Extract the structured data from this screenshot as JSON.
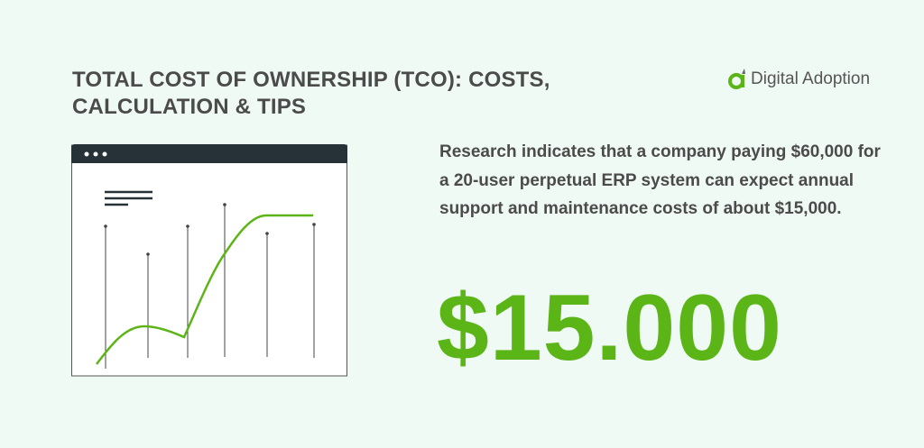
{
  "header": {
    "title_line1": "TOTAL COST OF OWNERSHIP (TCO): COSTS,",
    "title_line2": "CALCULATION & TIPS"
  },
  "logo": {
    "text": "Digital Adoption",
    "icon": "digital-adoption-logo-icon"
  },
  "body": {
    "text": "Research indicates that a company paying $60,000 for a 20-user perpetual ERP system can expect annual support and maintenance costs of about $15,000."
  },
  "highlight": {
    "value": "$15.000"
  },
  "colors": {
    "accent": "#5cb516",
    "text": "#4b4b4b",
    "window_bar": "#263238",
    "background": "#f0faf5"
  }
}
